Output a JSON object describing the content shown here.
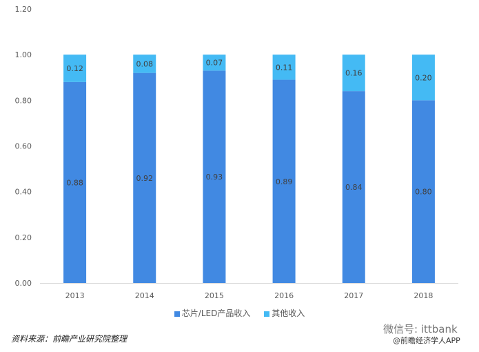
{
  "chart_data": {
    "type": "bar",
    "stacked": true,
    "categories": [
      "2013",
      "2014",
      "2015",
      "2016",
      "2017",
      "2018"
    ],
    "series": [
      {
        "name": "芯片/LED产品收入",
        "values": [
          0.88,
          0.92,
          0.93,
          0.89,
          0.84,
          0.8
        ],
        "color": "#4189E2"
      },
      {
        "name": "其他收入",
        "values": [
          0.12,
          0.08,
          0.07,
          0.11,
          0.16,
          0.2
        ],
        "color": "#44BAF4"
      }
    ],
    "ylim": [
      0,
      1.2
    ],
    "yticks": [
      "0.00",
      "0.20",
      "0.40",
      "0.60",
      "0.80",
      "1.00",
      "1.20"
    ],
    "grid": false,
    "legend": "bottom"
  },
  "source": "资料来源：前瞻产业研究院整理",
  "watermark": {
    "wechat": "微信号: ittbank",
    "app": "@前瞻经济学人APP"
  }
}
